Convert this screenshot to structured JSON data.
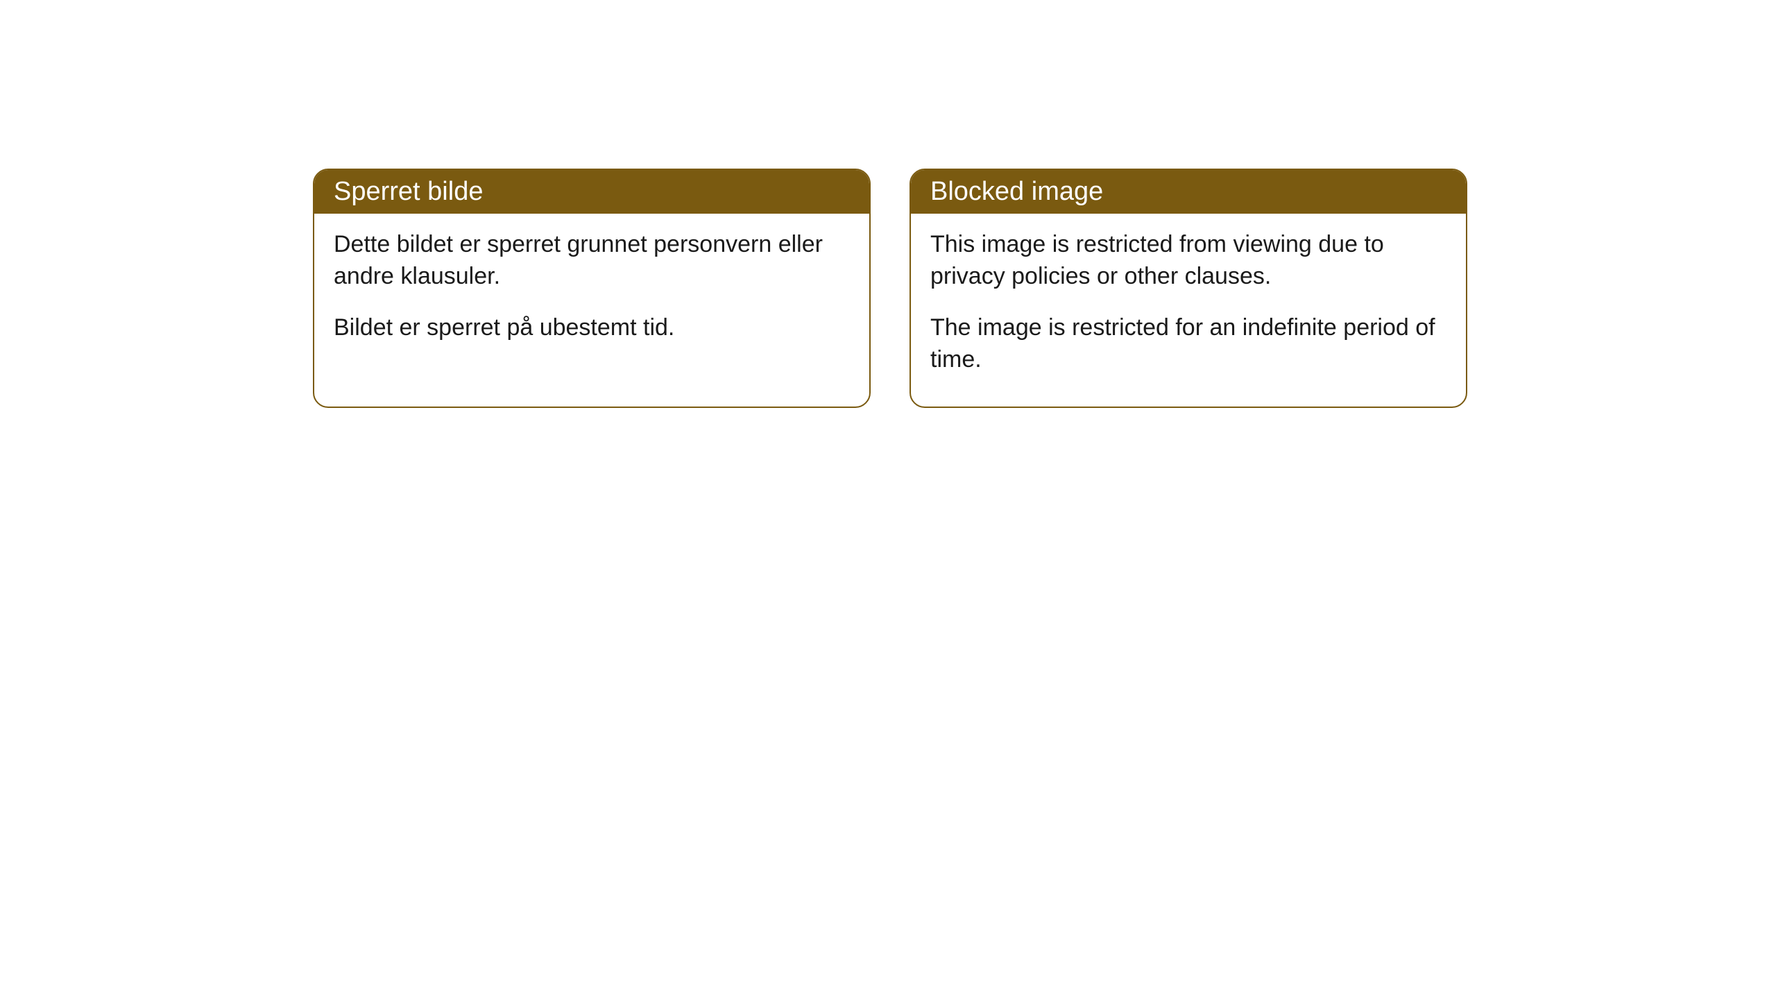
{
  "styling": {
    "header_bg_color": "#7a5a10",
    "header_text_color": "#ffffff",
    "border_color": "#7a5a10",
    "body_bg_color": "#ffffff",
    "body_text_color": "#1a1a1a",
    "page_bg_color": "#ffffff",
    "header_fontsize": 38,
    "body_fontsize": 34,
    "border_radius": 22
  },
  "cards": [
    {
      "title": "Sperret bilde",
      "body_p1": "Dette bildet er sperret grunnet personvern eller andre klausuler.",
      "body_p2": "Bildet er sperret på ubestemt tid."
    },
    {
      "title": "Blocked image",
      "body_p1": "This image is restricted from viewing due to privacy policies or other clauses.",
      "body_p2": "The image is restricted for an indefinite period of time."
    }
  ]
}
